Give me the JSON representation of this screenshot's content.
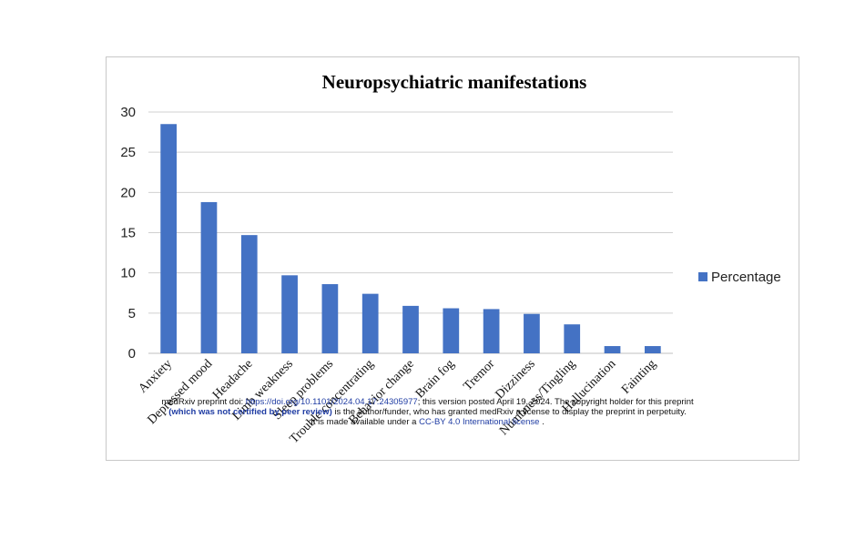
{
  "chart_data": {
    "type": "bar",
    "title": "Neuropsychiatric manifestations",
    "xlabel": "",
    "ylabel": "",
    "ylim": [
      0,
      30
    ],
    "yticks": [
      0,
      5,
      10,
      15,
      20,
      25,
      30
    ],
    "grid": true,
    "legend": "right",
    "color": "#4472c4",
    "categories": [
      "Anxiety",
      "Depressed mood",
      "Headache",
      "Limb weakness",
      "Sleep problems",
      "Trouble concentrating",
      "Behavior change",
      "Brain fog",
      "Tremor",
      "Dizziness",
      "Numbness/Tingling",
      "Hallucination",
      "Fainting"
    ],
    "series": [
      {
        "name": "Percentage",
        "values": [
          28.5,
          18.8,
          14.7,
          9.7,
          8.6,
          7.4,
          5.9,
          5.6,
          5.5,
          4.9,
          3.6,
          0.9,
          0.9
        ]
      }
    ]
  },
  "preprint": {
    "line1_prefix": "medRxiv preprint doi: ",
    "line1_doi": "https://doi.org/10.1101/2024.04.17.24305977",
    "line1_suffix": "; this version posted April 19, 2024. The copyright holder for this preprint",
    "line2_bold": "(which was not certified by peer review)",
    "line2_suffix": " is the author/funder, who has granted medRxiv a license to display the preprint in perpetuity.",
    "line3_prefix": "It is made available under a ",
    "line3_license": "CC-BY 4.0 International license",
    "line3_suffix": " ."
  }
}
